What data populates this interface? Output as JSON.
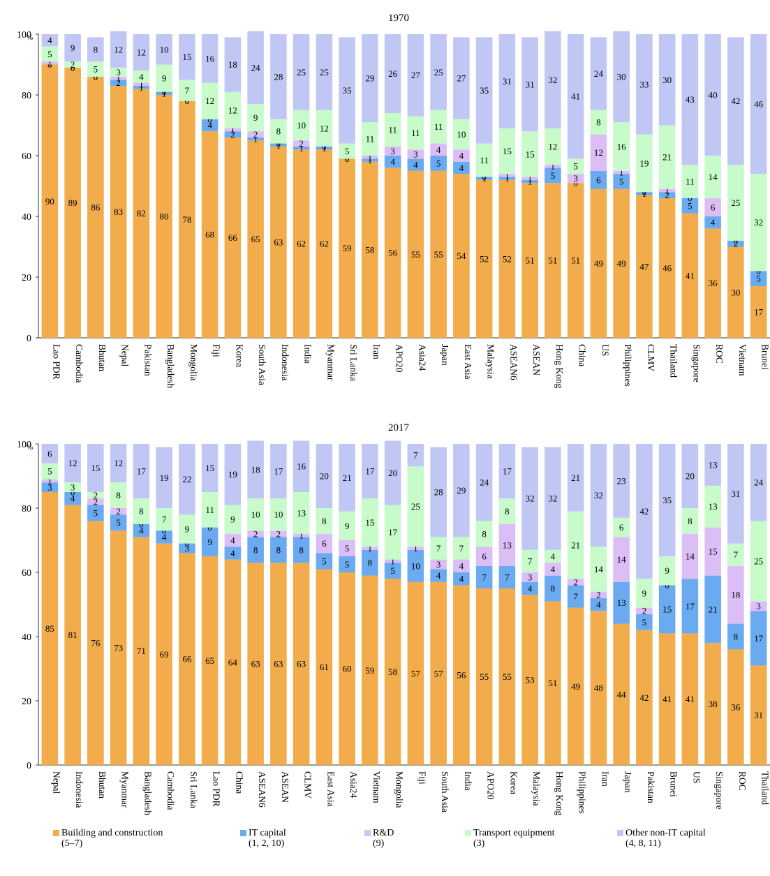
{
  "unit_label": "%",
  "series_colors": {
    "building": "#f2ac4b",
    "it": "#6aaaf0",
    "rd": "#dcbef7",
    "transport": "#c7fbc9",
    "other": "#c1c7f4"
  },
  "legend": [
    {
      "key": "building",
      "label": "Building and construction",
      "code": "(5–7)"
    },
    {
      "key": "it",
      "label": "IT capital",
      "code": "(1, 2, 10)"
    },
    {
      "key": "rd",
      "label": "R&D",
      "code": "(9)"
    },
    {
      "key": "transport",
      "label": "Transport equipment",
      "code": "(3)"
    },
    {
      "key": "other",
      "label": "Other non-IT capital",
      "code": "(4, 8, 11)"
    }
  ],
  "chart_data": [
    {
      "type": "bar",
      "stacked": true,
      "title": "1970",
      "ylabel": "%",
      "ylim": [
        0,
        100
      ],
      "yticks": [
        0,
        20,
        40,
        60,
        80,
        100
      ],
      "categories": [
        "Lao PDR",
        "Cambodia",
        "Bhutan",
        "Nepal",
        "Pakistan",
        "Bangladesh",
        "Mongolia",
        "Fiji",
        "Korea",
        "South Asia",
        "Indonesia",
        "India",
        "Myanmar",
        "Sri Lanka",
        "Iran",
        "APO20",
        "Asia24",
        "Japan",
        "East Asia",
        "Malaysia",
        "ASEAN6",
        "ASEAN",
        "Hong Kong",
        "China",
        "US",
        "Philippines",
        "CLMV",
        "Thailand",
        "Singapore",
        "ROC",
        "Vietnam",
        "Brunei"
      ],
      "series": [
        {
          "name": "Building and construction",
          "values": [
            90,
            89,
            86,
            83,
            82,
            80,
            78,
            68,
            66,
            65,
            63,
            62,
            62,
            59,
            58,
            56,
            55,
            55,
            54,
            52,
            52,
            51,
            51,
            51,
            49,
            49,
            47,
            46,
            41,
            36,
            30,
            17
          ]
        },
        {
          "name": "IT capital",
          "values": [
            0,
            0,
            0,
            2,
            1,
            1,
            0,
            4,
            2,
            1,
            1,
            1,
            1,
            0,
            1,
            4,
            4,
            5,
            4,
            1,
            1,
            1,
            5,
            0,
            6,
            5,
            1,
            2,
            5,
            4,
            2,
            5
          ]
        },
        {
          "name": "R&D",
          "values": [
            1,
            0,
            0,
            1,
            1,
            0,
            0,
            0,
            1,
            2,
            0,
            2,
            0,
            0,
            1,
            3,
            3,
            4,
            4,
            0,
            1,
            1,
            1,
            3,
            12,
            1,
            0,
            1,
            0,
            6,
            0,
            0
          ]
        },
        {
          "name": "Transport equipment",
          "values": [
            5,
            2,
            5,
            3,
            4,
            9,
            7,
            12,
            12,
            9,
            8,
            10,
            12,
            5,
            11,
            11,
            11,
            11,
            10,
            11,
            15,
            15,
            12,
            5,
            8,
            16,
            19,
            21,
            11,
            14,
            25,
            32
          ]
        },
        {
          "name": "Other non-IT capital",
          "values": [
            4,
            9,
            8,
            12,
            12,
            10,
            15,
            16,
            18,
            24,
            28,
            25,
            25,
            35,
            29,
            26,
            27,
            25,
            27,
            35,
            31,
            31,
            32,
            41,
            24,
            30,
            33,
            30,
            43,
            40,
            42,
            46
          ]
        }
      ]
    },
    {
      "type": "bar",
      "stacked": true,
      "title": "2017",
      "ylabel": "%",
      "ylim": [
        0,
        100
      ],
      "yticks": [
        0,
        20,
        40,
        60,
        80,
        100
      ],
      "categories": [
        "Nepal",
        "Indonesia",
        "Bhutan",
        "Myanmar",
        "Bangladesh",
        "Cambodia",
        "Sri Lanka",
        "Lao PDR",
        "China",
        "ASEAN6",
        "ASEAN",
        "CLMV",
        "East Asia",
        "Asia24",
        "Vietnam",
        "Mongolia",
        "Fiji",
        "South Asia",
        "India",
        "APO20",
        "Korea",
        "Malaysia",
        "Hong Kong",
        "Philippines",
        "Iran",
        "Japan",
        "Pakistan",
        "Brunei",
        "US",
        "Singapore",
        "ROC",
        "Thailand"
      ],
      "series": [
        {
          "name": "Building and construction",
          "values": [
            85,
            81,
            76,
            73,
            71,
            69,
            66,
            65,
            64,
            63,
            63,
            63,
            61,
            60,
            59,
            58,
            57,
            57,
            56,
            55,
            55,
            53,
            51,
            49,
            48,
            44,
            42,
            41,
            41,
            38,
            36,
            31
          ]
        },
        {
          "name": "IT capital",
          "values": [
            3,
            4,
            5,
            5,
            4,
            4,
            3,
            9,
            4,
            8,
            8,
            8,
            5,
            5,
            8,
            5,
            10,
            4,
            4,
            7,
            7,
            4,
            8,
            7,
            4,
            13,
            5,
            15,
            17,
            21,
            8,
            17
          ]
        },
        {
          "name": "R&D",
          "values": [
            1,
            0,
            2,
            2,
            0,
            0,
            0,
            0,
            4,
            2,
            2,
            1,
            6,
            5,
            1,
            1,
            1,
            3,
            4,
            6,
            13,
            3,
            4,
            2,
            2,
            14,
            2,
            0,
            14,
            15,
            18,
            3
          ]
        },
        {
          "name": "Transport equipment",
          "values": [
            5,
            3,
            2,
            8,
            8,
            7,
            9,
            11,
            9,
            10,
            10,
            13,
            8,
            9,
            15,
            17,
            25,
            7,
            7,
            8,
            8,
            7,
            4,
            21,
            14,
            6,
            9,
            9,
            8,
            13,
            7,
            25
          ]
        },
        {
          "name": "Other non-IT capital",
          "values": [
            6,
            12,
            15,
            12,
            17,
            19,
            22,
            15,
            19,
            18,
            17,
            16,
            20,
            21,
            17,
            20,
            7,
            28,
            29,
            24,
            17,
            32,
            32,
            21,
            32,
            23,
            42,
            35,
            20,
            13,
            31,
            24
          ]
        }
      ]
    }
  ]
}
